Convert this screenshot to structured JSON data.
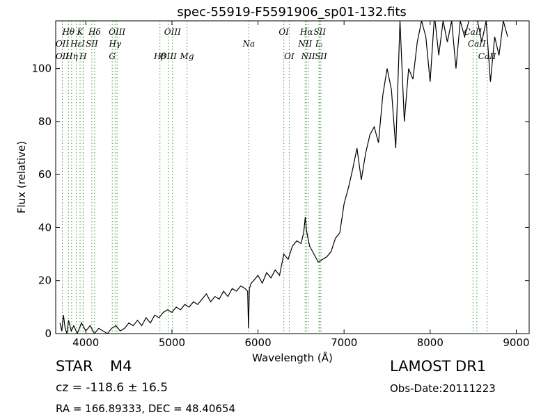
{
  "chart_data": {
    "type": "line",
    "title": "spec-55919-F5591906_sp01-132.fits",
    "xlabel": "Wavelength (Å)",
    "ylabel": "Flux (relative)",
    "xlim": [
      3650,
      9150
    ],
    "ylim": [
      0,
      118
    ],
    "xticks": [
      4000,
      5000,
      6000,
      7000,
      8000,
      9000
    ],
    "yticks": [
      0,
      20,
      40,
      60,
      80,
      100
    ],
    "grid": false,
    "line_color": "#000000",
    "marker_color": "#3a9a3a",
    "series": [
      {
        "x": [
          3700,
          3720,
          3740,
          3760,
          3780,
          3800,
          3830,
          3860,
          3900,
          3950,
          4000,
          4050,
          4100,
          4150,
          4200,
          4250,
          4300,
          4350,
          4400,
          4450,
          4500,
          4550,
          4600,
          4650,
          4700,
          4750,
          4800,
          4850,
          4900,
          4950,
          5000,
          5050,
          5100,
          5150,
          5200,
          5250,
          5300,
          5350,
          5400,
          5450,
          5500,
          5550,
          5600,
          5650,
          5700,
          5750,
          5800,
          5850,
          5880,
          5890,
          5900,
          5920,
          5950,
          6000,
          6050,
          6100,
          6150,
          6200,
          6250,
          6300,
          6350,
          6400,
          6450,
          6500,
          6530,
          6550,
          6563,
          6580,
          6600,
          6650,
          6700,
          6750,
          6800,
          6850,
          6900,
          6950,
          7000,
          7050,
          7100,
          7150,
          7200,
          7250,
          7300,
          7350,
          7400,
          7450,
          7500,
          7550,
          7600,
          7650,
          7700,
          7750,
          7800,
          7850,
          7900,
          7950,
          8000,
          8050,
          8100,
          8150,
          8200,
          8250,
          8300,
          8350,
          8400,
          8450,
          8500,
          8550,
          8600,
          8650,
          8700,
          8750,
          8800,
          8850,
          8900
        ],
        "y": [
          4,
          1,
          7,
          2,
          0,
          5,
          1,
          3,
          0,
          4,
          1,
          3,
          0,
          2,
          1,
          0,
          2,
          3,
          1,
          2,
          4,
          3,
          5,
          3,
          6,
          4,
          7,
          6,
          8,
          9,
          8,
          10,
          9,
          11,
          10,
          12,
          11,
          13,
          15,
          12,
          14,
          13,
          16,
          14,
          17,
          16,
          18,
          17,
          16,
          2,
          17,
          19,
          20,
          22,
          19,
          23,
          21,
          24,
          22,
          30,
          28,
          33,
          35,
          34,
          38,
          44,
          39,
          36,
          33,
          30,
          27,
          28,
          29,
          31,
          36,
          38,
          49,
          55,
          62,
          70,
          58,
          68,
          75,
          78,
          72,
          90,
          100,
          92,
          70,
          118,
          80,
          100,
          96,
          110,
          118,
          112,
          95,
          120,
          105,
          118,
          110,
          118,
          100,
          118,
          112,
          118,
          120,
          118,
          110,
          118,
          95,
          112,
          105,
          118,
          112
        ]
      }
    ],
    "line_markers": [
      {
        "label": "Hθ",
        "wl": 3798,
        "style": "italic",
        "row": 1
      },
      {
        "label": "K",
        "wl": 3933,
        "style": "italic",
        "row": 1
      },
      {
        "label": "Hδ",
        "wl": 4102,
        "style": "italic",
        "row": 1
      },
      {
        "label": "OIII",
        "wl": 4363,
        "style": "italic",
        "row": 1
      },
      {
        "label": "OIII",
        "wl": 5007,
        "style": "italic",
        "row": 1
      },
      {
        "label": "OI",
        "wl": 6300,
        "style": "italic",
        "row": 1
      },
      {
        "label": "Hα",
        "wl": 6563,
        "style": "italic",
        "row": 1
      },
      {
        "label": "SII",
        "wl": 6717,
        "style": "italic",
        "row": 1
      },
      {
        "label": "CaII",
        "wl": 8498,
        "style": "italic",
        "row": 1
      },
      {
        "label": "OII",
        "wl": 3727,
        "style": "italic",
        "row": 2
      },
      {
        "label": "Hε",
        "wl": 3889,
        "style": "italic",
        "row": 2
      },
      {
        "label": "I",
        "wl": 3970,
        "style": "italic",
        "row": 2
      },
      {
        "label": "SII",
        "wl": 4070,
        "style": "italic",
        "row": 2
      },
      {
        "label": "Hγ",
        "wl": 4340,
        "style": "italic",
        "row": 2
      },
      {
        "label": "OIII",
        "wl": 4959,
        "style": "italic",
        "row": 3
      },
      {
        "label": "NII",
        "wl": 6548,
        "style": "italic",
        "row": 2
      },
      {
        "label": "Lᵢ",
        "wl": 6708,
        "style": "italic",
        "row": 2
      },
      {
        "label": "CaII",
        "wl": 8542,
        "style": "italic",
        "row": 2
      },
      {
        "label": "OII",
        "wl": 3727,
        "style": "italic",
        "row": 3
      },
      {
        "label": "Hη",
        "wl": 3835,
        "style": "italic",
        "row": 3
      },
      {
        "label": "H",
        "wl": 3968,
        "style": "italic",
        "row": 3
      },
      {
        "label": "G",
        "wl": 4307,
        "style": "italic",
        "row": 3
      },
      {
        "label": "Hβ",
        "wl": 4861,
        "style": "italic",
        "row": 3
      },
      {
        "label": "Mg",
        "wl": 5175,
        "style": "italic",
        "row": 3
      },
      {
        "label": "Na",
        "wl": 5893,
        "style": "italic",
        "row": 2
      },
      {
        "label": "OI",
        "wl": 6363,
        "style": "italic",
        "row": 3
      },
      {
        "label": "NII",
        "wl": 6583,
        "style": "italic",
        "row": 3
      },
      {
        "label": "SII",
        "wl": 6731,
        "style": "italic",
        "row": 3
      },
      {
        "label": "CaII",
        "wl": 8662,
        "style": "italic",
        "row": 3
      }
    ]
  },
  "info": {
    "class_label": "STAR",
    "subclass": "M4",
    "survey": "LAMOST DR1",
    "cz": "cz = -118.6  ± 16.5",
    "obs_date": "Obs-Date:20111223",
    "coords": "RA = 166.89333, DEC = 48.40654"
  }
}
